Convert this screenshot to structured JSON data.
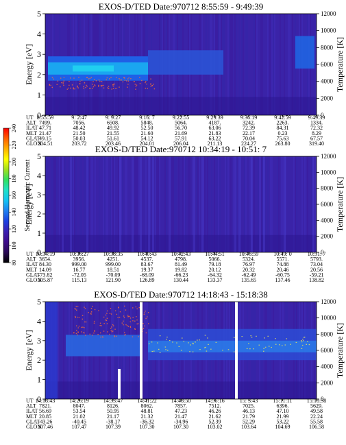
{
  "colorbar": {
    "label": "Second Harmonic Current",
    "ticks": [
      "80",
      "100",
      "120",
      "140",
      "160",
      "180",
      "200",
      "220",
      "240"
    ],
    "colors": [
      "#000000",
      "#2a0a55",
      "#3d0c8a",
      "#3b1fb0",
      "#1c3fe0",
      "#1f7ff0",
      "#13c2f2",
      "#1fe0c8",
      "#2fe060",
      "#a0e020",
      "#ffff00",
      "#ffb000",
      "#ff6000",
      "#ff0000"
    ]
  },
  "chart_data": [
    {
      "type": "heatmap",
      "title": "EXOS-D/TED   Date:970712  8:55:59 - 9:49:39",
      "xlabel": "",
      "ylabel": "Energy [eV]",
      "ylabel_right": "Temperature [K]",
      "ylim": [
        0,
        5
      ],
      "ylim_right": [
        0,
        12000
      ],
      "yticks": [
        "0",
        "1",
        "2",
        "3",
        "4",
        "5"
      ],
      "yticks_right": [
        "0",
        "2000",
        "4000",
        "6000",
        "8000",
        "10000",
        "12000"
      ],
      "orbit_labels": [
        "UT",
        "ALT",
        "ILAT",
        "MLT",
        "GLAT",
        "GLON"
      ],
      "orbit_columns": [
        [
          "8:55:59",
          "7499.",
          "47.71",
          "21.47",
          "49.15",
          "204.51"
        ],
        [
          "9: 2:47",
          "7056.",
          "48.42",
          "21.50",
          "50.03",
          "203.72"
        ],
        [
          "9: 9:27",
          "6508.",
          "49.92",
          "21.55",
          "51.61",
          "203.46"
        ],
        [
          "9:16: 7",
          "5848.",
          "52.50",
          "21.60",
          "54.12",
          "204.01"
        ],
        [
          "9:22:55",
          "5064.",
          "56.70",
          "21.69",
          "57.91",
          "206.04"
        ],
        [
          "9:29:39",
          "4187.",
          "63.06",
          "21.83",
          "63.22",
          "211.13"
        ],
        [
          "9:36:19",
          "3242.",
          "72.39",
          "22.17",
          "70.04",
          "224.27"
        ],
        [
          "9:42:59",
          "2263.",
          "84.31",
          "0.23",
          "75.63",
          "263.80"
        ],
        [
          "9:49:39",
          "1334.",
          "72.32",
          "8.29",
          "67.57",
          "319.40"
        ]
      ]
    },
    {
      "type": "heatmap",
      "title": "EXOS-D/TED   Date:970712  10:34:19 - 10:51: 7",
      "xlabel": "",
      "ylabel": "Energy [eV]",
      "ylabel_right": "Temperature [K]",
      "ylim": [
        0,
        5
      ],
      "ylim_right": [
        0,
        12000
      ],
      "yticks": [
        "0",
        "1",
        "2",
        "3",
        "4",
        "5"
      ],
      "yticks_right": [
        "0",
        "2000",
        "4000",
        "6000",
        "8000",
        "10000",
        "12000"
      ],
      "orbit_labels": [
        "UT",
        "ALT",
        "ILAT",
        "MLT",
        "GLAT",
        "GLON"
      ],
      "orbit_columns": [
        [
          "10:34:19",
          "3654.",
          "84.30",
          "14.09",
          "-73.82",
          "105.87"
        ],
        [
          "10:36:27",
          "3956.",
          "999.00",
          "16.77",
          "-72.05",
          "115.13"
        ],
        [
          "10:38:35",
          "4251.",
          "999.00",
          "18.51",
          "-70.09",
          "121.90"
        ],
        [
          "10:40:43",
          "4537.",
          "83.67",
          "19.37",
          "-68.09",
          "126.89"
        ],
        [
          "10:42:43",
          "4798.",
          "81.49",
          "19.82",
          "-66.23",
          "130.44"
        ],
        [
          "10:44:51",
          "5066.",
          "79.18",
          "20.12",
          "-64.32",
          "133.37"
        ],
        [
          "10:46:59",
          "5324.",
          "76.97",
          "20.32",
          "-62.49",
          "135.65"
        ],
        [
          "10:49: 0",
          "5571.",
          "74.88",
          "20.46",
          "-60.75",
          "137.46"
        ],
        [
          "10:51: 7",
          "5793.",
          "73.04",
          "20.56",
          "-59.21",
          "138.82"
        ]
      ]
    },
    {
      "type": "heatmap",
      "title": "EXOS-D/TED   Date:970712  14:18:43 - 15:18:38",
      "xlabel": "",
      "ylabel": "Energy [eV]",
      "ylabel_right": "Temperature [K]",
      "ylim": [
        0,
        5
      ],
      "ylim_right": [
        0,
        12000
      ],
      "yticks": [
        "0",
        "1",
        "2",
        "3",
        "4",
        "5"
      ],
      "yticks_right": [
        "0",
        "2000",
        "4000",
        "6000",
        "8000",
        "10000",
        "12000"
      ],
      "orbit_labels": [
        "UT",
        "ALT",
        "ILAT",
        "MLT",
        "GLAT",
        "GLON"
      ],
      "orbit_columns": [
        [
          "14:18:43",
          "7821.",
          "56.69",
          "20.85",
          "-43.26",
          "107.46"
        ],
        [
          "14:26:19",
          "8047.",
          "53.54",
          "21.02",
          "-40.45",
          "107.47"
        ],
        [
          "14:33:47",
          "8126.",
          "50.95",
          "21.17",
          "-38.17",
          "107.39"
        ],
        [
          "14:41:22",
          "8062.",
          "48.81",
          "21.32",
          "-36.32",
          "107.30"
        ],
        [
          "14:48:50",
          "7857.",
          "47.23",
          "21.47",
          "-34.96",
          "107.30"
        ],
        [
          "14:56:16",
          "7512.",
          "46.26",
          "21.62",
          "52.39",
          "103.02"
        ],
        [
          "15: 3:43",
          "7025.",
          "46.13",
          "21.79",
          "52.29",
          "103.64"
        ],
        [
          "15:11:11",
          "6396.",
          "47.10",
          "21.99",
          "53.22",
          "104.69"
        ],
        [
          "15:18:38",
          "5629.",
          "49.58",
          "22.24",
          "55.58",
          "106.58"
        ]
      ]
    }
  ]
}
